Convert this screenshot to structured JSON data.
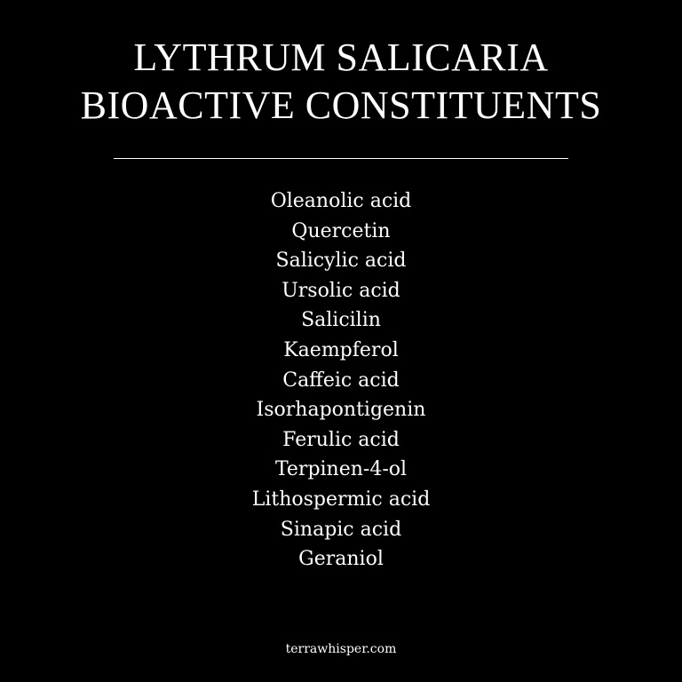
{
  "title": {
    "line1": "LYTHRUM SALICARIA",
    "line2": "BIOACTIVE CONSTITUENTS"
  },
  "constituents": [
    "Oleanolic acid",
    "Quercetin",
    "Salicylic acid",
    "Ursolic acid",
    "Salicilin",
    "Kaempferol",
    "Caffeic acid",
    "Isorhapontigenin",
    "Ferulic acid",
    "Terpinen-4-ol",
    "Lithospermic acid",
    "Sinapic acid",
    "Geraniol"
  ],
  "footer": {
    "site": "terrawhisper.com"
  },
  "colors": {
    "background": "#000000",
    "text": "#ffffff"
  }
}
